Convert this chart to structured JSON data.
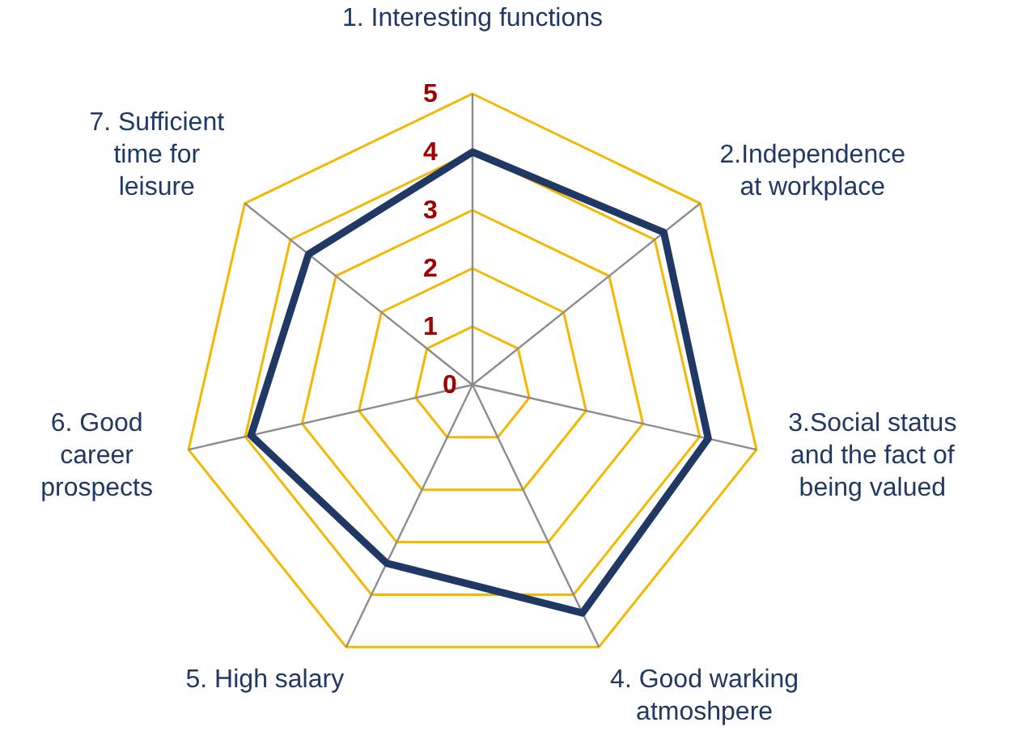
{
  "chart_data": {
    "type": "radar",
    "categories": [
      "1. Interesting functions",
      "2.Independence at workplace",
      "3.Social status and the fact of being valued",
      "4. Good warking atmoshpere",
      "5. High salary",
      "6. Good career prospects",
      "7. Sufficient time for leisure"
    ],
    "series": [
      {
        "color": "#1f3864",
        "values": [
          4.0,
          4.2,
          4.15,
          4.35,
          3.4,
          3.9,
          3.6
        ]
      }
    ],
    "ylim": [
      0,
      5
    ],
    "yticks": [
      0,
      1,
      2,
      3,
      4,
      5
    ],
    "grid": true,
    "marker": "none",
    "line_style": "solid"
  }
}
